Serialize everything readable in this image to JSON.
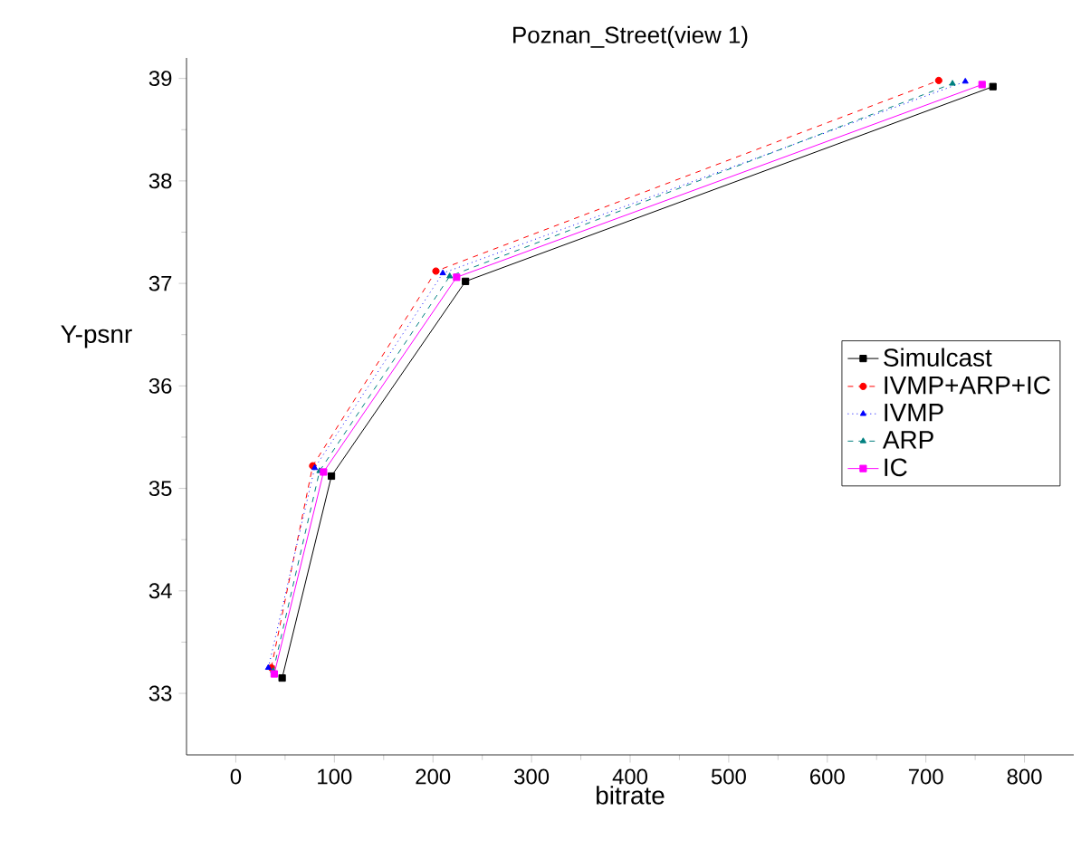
{
  "chart_data": {
    "type": "line",
    "title": "Poznan_Street(view 1)",
    "xlabel": "bitrate",
    "ylabel": "Y-psnr",
    "xlim": [
      -50,
      850
    ],
    "xticks": [
      0,
      100,
      200,
      300,
      400,
      500,
      600,
      700,
      800
    ],
    "ylim": [
      32.4,
      39.2
    ],
    "yticks": [
      33,
      34,
      35,
      36,
      37,
      38,
      39
    ],
    "grid": false,
    "legend": "right",
    "series": [
      {
        "name": "Simulcast",
        "color": "#000000",
        "marker": "square",
        "line_style": "solid",
        "x": [
          47,
          97,
          233,
          768
        ],
        "values": [
          33.15,
          35.12,
          37.02,
          38.92
        ]
      },
      {
        "name": "IVMP+ARP+IC",
        "color": "#ff0000",
        "marker": "circle",
        "line_style": "dashed",
        "x": [
          36,
          78,
          203,
          713
        ],
        "values": [
          33.25,
          35.22,
          37.12,
          38.98
        ]
      },
      {
        "name": "IVMP",
        "color": "#0000ff",
        "marker": "triangle",
        "line_style": "dotted",
        "x": [
          33,
          80,
          210,
          740
        ],
        "values": [
          33.25,
          35.2,
          37.1,
          38.97
        ]
      },
      {
        "name": "ARP",
        "color": "#008080",
        "marker": "triangle",
        "line_style": "dashed",
        "x": [
          38,
          85,
          217,
          727
        ],
        "values": [
          33.22,
          35.17,
          37.07,
          38.95
        ]
      },
      {
        "name": "IC",
        "color": "#ff00ff",
        "marker": "square",
        "line_style": "solid",
        "x": [
          39,
          89,
          224,
          757
        ],
        "values": [
          33.19,
          35.16,
          37.06,
          38.94
        ]
      }
    ]
  }
}
